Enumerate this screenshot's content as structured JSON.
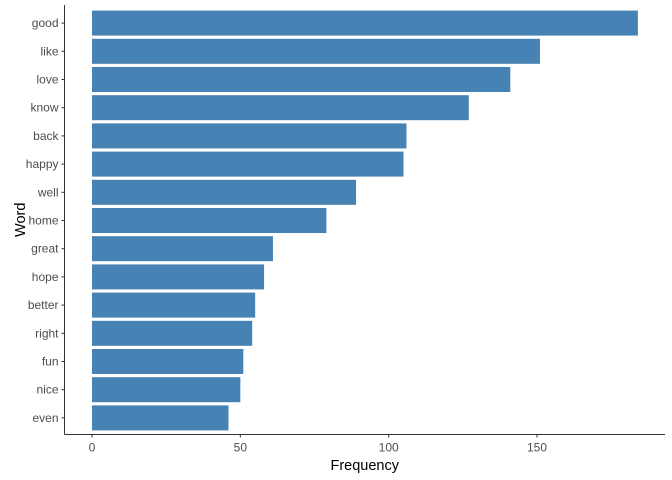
{
  "chart_data": {
    "type": "bar",
    "orientation": "horizontal",
    "categories": [
      "good",
      "like",
      "love",
      "know",
      "back",
      "happy",
      "well",
      "home",
      "great",
      "hope",
      "better",
      "right",
      "fun",
      "nice",
      "even"
    ],
    "values": [
      184,
      151,
      141,
      127,
      106,
      105,
      89,
      79,
      61,
      58,
      55,
      54,
      51,
      50,
      46
    ],
    "xlabel": "Frequency",
    "ylabel": "Word",
    "xlim": [
      0,
      193
    ],
    "xticks": [
      0,
      50,
      100,
      150
    ],
    "grid": false,
    "bar_color": "#4682b4",
    "axis_color": "#333333",
    "tick_label_color": "#4d4d4d"
  }
}
